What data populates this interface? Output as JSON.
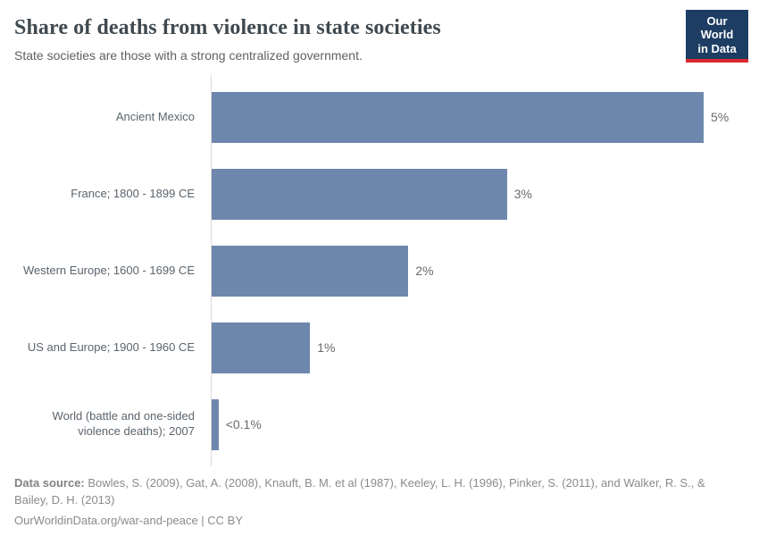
{
  "header": {
    "title": "Share of deaths from violence in state societies",
    "subtitle": "State societies are those with a strong centralized government.",
    "logo": {
      "line1": "Our World",
      "line2": "in Data",
      "bg_color": "#1d3d63",
      "accent_color": "#dc2830"
    }
  },
  "chart_data": {
    "type": "bar",
    "orientation": "horizontal",
    "title": "Share of deaths from violence in state societies",
    "xlabel": "",
    "ylabel": "",
    "xlim": [
      0,
      5
    ],
    "grid": false,
    "legend": false,
    "bar_color": "#6e87ad",
    "categories": [
      "Ancient Mexico",
      "France; 1800 - 1899 CE",
      "Western Europe; 1600 - 1699 CE",
      "US and Europe; 1900 - 1960 CE",
      "World (battle and one-sided violence deaths); 2007"
    ],
    "values": [
      5,
      3,
      2,
      1,
      0.07
    ],
    "value_labels": [
      "5%",
      "3%",
      "2%",
      "1%",
      "<0.1%"
    ]
  },
  "footer": {
    "source_label": "Data source:",
    "source_text": " Bowles, S. (2009), Gat, A. (2008), Knauft, B. M. et al (1987), Keeley, L. H. (1996), Pinker, S. (2011), and Walker, R. S., & Bailey, D. H. (2013)",
    "link_text": "OurWorldinData.org/war-and-peace | CC BY"
  }
}
